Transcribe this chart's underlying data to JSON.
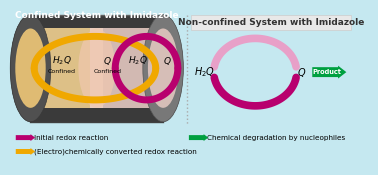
{
  "bg_color": "#c5e8f0",
  "left_title": "Confined System with Imidazole",
  "right_title": "Non-confined System with Imidazole",
  "tube_dark": "#3a3a3a",
  "tube_mid": "#606060",
  "tube_light": "#909090",
  "confined_bg_left": "#f5dea0",
  "confined_bg_right": "#f5d0c0",
  "orange": "#f0a800",
  "purple": "#b8006e",
  "pink": "#d060a0",
  "pink_light": "#e8a0c8",
  "green": "#00a040",
  "legend_purple": "#b8006e",
  "legend_orange": "#f0a800",
  "legend_green": "#00a040",
  "legend1": "Initial redox reaction",
  "legend2": "(Electro)chemically converted redox reaction",
  "legend3": "Chemical degradation by nucleophiles"
}
